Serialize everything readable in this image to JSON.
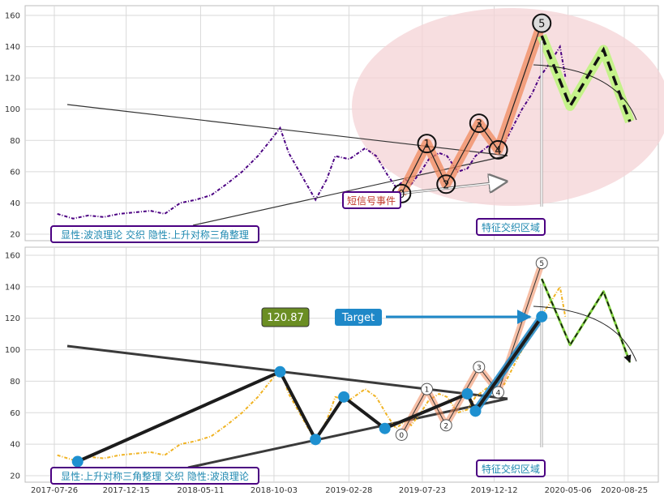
{
  "colors": {
    "price_top": "#4b0082",
    "price_bottom": "#f0b323",
    "wave_highlight": "#f08a5d",
    "projection_highlight": "#c5f28a",
    "ellipse_fill": "#f4d3d6",
    "marker_blue": "#1e90d0",
    "label_border": "#4b0082",
    "label_text": "#1e88b0",
    "value_box": "#6b8e23",
    "target_box": "#1e88c8",
    "signal_text": "#c0392b"
  },
  "chart_data": [
    {
      "type": "line",
      "panel": "top",
      "ylim": [
        15,
        165
      ],
      "yticks": [
        20,
        40,
        60,
        80,
        100,
        120,
        140,
        160
      ],
      "xlim": [
        "2017-07-01",
        "2020-10-01"
      ],
      "grid": true,
      "series": [
        {
          "color": "#4b0082",
          "x": [
            "2017-08-01",
            "2017-09-01",
            "2017-10-01",
            "2017-11-01",
            "2017-12-01",
            "2018-01-01",
            "2018-02-01",
            "2018-03-01",
            "2018-04-01",
            "2018-05-01",
            "2018-06-01",
            "2018-07-01",
            "2018-08-01",
            "2018-09-01",
            "2018-10-01",
            "2018-10-15",
            "2018-11-01",
            "2018-12-01",
            "2018-12-24",
            "2019-01-15",
            "2019-02-01",
            "2019-03-01",
            "2019-04-01",
            "2019-04-23",
            "2019-05-15",
            "2019-06-01",
            "2019-06-20",
            "2019-07-01",
            "2019-07-20",
            "2019-08-05",
            "2019-08-25",
            "2019-09-10",
            "2019-10-01",
            "2019-10-20",
            "2019-11-05",
            "2019-11-25",
            "2019-12-15",
            "2020-01-01",
            "2020-01-20",
            "2020-02-05",
            "2020-02-25",
            "2020-03-10",
            "2020-04-01",
            "2020-04-20",
            "2020-05-01"
          ],
          "y": [
            33,
            30,
            32,
            31,
            33,
            34,
            35,
            33,
            40,
            42,
            45,
            52,
            60,
            70,
            82,
            88,
            72,
            55,
            42,
            55,
            70,
            68,
            75,
            70,
            58,
            50,
            55,
            52,
            60,
            68,
            72,
            70,
            60,
            62,
            70,
            75,
            80,
            78,
            90,
            100,
            110,
            120,
            130,
            140,
            120
          ]
        }
      ],
      "annotations": {
        "wave_points": [
          {
            "label": "0",
            "x": "2019-06-12",
            "y": 46
          },
          {
            "label": "1",
            "x": "2019-08-01",
            "y": 78
          },
          {
            "label": "2",
            "x": "2019-09-08",
            "y": 52
          },
          {
            "label": "3",
            "x": "2019-11-12",
            "y": 91
          },
          {
            "label": "4",
            "x": "2019-12-20",
            "y": 74
          },
          {
            "label": "5",
            "x": "2020-03-15",
            "y": 155
          }
        ],
        "projection": [
          {
            "x": "2020-03-15",
            "y": 147
          },
          {
            "x": "2020-05-10",
            "y": 102
          },
          {
            "x": "2020-07-15",
            "y": 138
          },
          {
            "x": "2020-09-05",
            "y": 92
          }
        ],
        "label_left": "显性:波浪理论 交织 隐性:上升对称三角整理",
        "label_zone": "特征交织区域",
        "label_signal": "短信号事件"
      }
    },
    {
      "type": "line",
      "panel": "bottom",
      "ylim": [
        15,
        165
      ],
      "yticks": [
        20,
        40,
        60,
        80,
        100,
        120,
        140,
        160
      ],
      "xticks": [
        "2017-07-26",
        "2017-12-15",
        "2018-05-11",
        "2018-10-03",
        "2019-02-28",
        "2019-07-23",
        "2019-12-12",
        "2020-05-06",
        "2020-08-25"
      ],
      "grid": true,
      "series": [
        {
          "color": "#f0b323",
          "x": [
            "2017-08-01",
            "2017-09-01",
            "2017-10-01",
            "2017-11-01",
            "2017-12-01",
            "2018-01-01",
            "2018-02-01",
            "2018-03-01",
            "2018-04-01",
            "2018-05-01",
            "2018-06-01",
            "2018-07-01",
            "2018-08-01",
            "2018-09-01",
            "2018-10-01",
            "2018-10-15",
            "2018-11-01",
            "2018-12-01",
            "2018-12-24",
            "2019-01-15",
            "2019-02-01",
            "2019-03-01",
            "2019-04-01",
            "2019-04-23",
            "2019-05-15",
            "2019-06-01",
            "2019-06-20",
            "2019-07-01",
            "2019-07-20",
            "2019-08-05",
            "2019-08-25",
            "2019-09-10",
            "2019-10-01",
            "2019-10-20",
            "2019-11-05",
            "2019-11-25",
            "2019-12-15",
            "2020-01-01",
            "2020-01-20",
            "2020-02-05",
            "2020-02-25",
            "2020-03-10",
            "2020-04-01",
            "2020-04-20",
            "2020-05-01"
          ],
          "y": [
            33,
            30,
            32,
            31,
            33,
            34,
            35,
            33,
            40,
            42,
            45,
            52,
            60,
            70,
            82,
            88,
            72,
            55,
            42,
            55,
            70,
            68,
            75,
            70,
            58,
            50,
            55,
            52,
            60,
            68,
            72,
            70,
            60,
            62,
            70,
            75,
            80,
            78,
            90,
            100,
            110,
            120,
            130,
            140,
            120
          ]
        }
      ],
      "annotations": {
        "triangle_points": [
          {
            "x": "2017-09-10",
            "y": 29
          },
          {
            "x": "2018-10-15",
            "y": 86
          },
          {
            "x": "2018-12-24",
            "y": 43
          },
          {
            "x": "2019-02-18",
            "y": 70
          },
          {
            "x": "2019-05-10",
            "y": 50
          },
          {
            "x": "2019-10-20",
            "y": 72
          },
          {
            "x": "2019-11-05",
            "y": 61
          },
          {
            "x": "2020-03-15",
            "y": 121
          }
        ],
        "wave_labels": [
          {
            "label": "0",
            "x": "2019-06-12",
            "y": 46
          },
          {
            "label": "1",
            "x": "2019-08-01",
            "y": 75
          },
          {
            "label": "2",
            "x": "2019-09-08",
            "y": 52
          },
          {
            "label": "3",
            "x": "2019-11-12",
            "y": 89
          },
          {
            "label": "4",
            "x": "2019-12-20",
            "y": 73
          },
          {
            "label": "5",
            "x": "2020-03-15",
            "y": 155
          }
        ],
        "projection": [
          {
            "x": "2020-03-15",
            "y": 145
          },
          {
            "x": "2020-05-10",
            "y": 103
          },
          {
            "x": "2020-07-15",
            "y": 137
          },
          {
            "x": "2020-09-05",
            "y": 92
          }
        ],
        "value_label": "120.87",
        "target_label": "Target",
        "label_left": "显性:上升对称三角整理 交织 隐性:波浪理论",
        "label_zone": "特征交织区域"
      }
    }
  ]
}
